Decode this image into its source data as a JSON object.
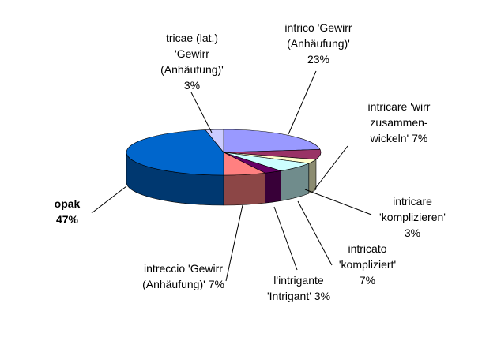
{
  "chart_data": {
    "type": "pie",
    "categories": [
      "intrico 'Gewirr (Anhäufung)'",
      "intricare 'wirr zusammen-wickeln'",
      "intricare 'komplizieren'",
      "intricato 'kompliziert'",
      "l'intrigante 'Intrigant'",
      "intreccio 'Gewirr (Anhäufung)'",
      "opak",
      "tricae (lat.) 'Gewirr (Anhäufung)'"
    ],
    "values": [
      23,
      7,
      3,
      7,
      3,
      7,
      47,
      3
    ],
    "value_labels": [
      "23%",
      "7%",
      "3%",
      "7%",
      "3%",
      "7%",
      "47%",
      "3%"
    ],
    "colors": [
      "#9999ff",
      "#993366",
      "#ffffcc",
      "#ccffff",
      "#660066",
      "#ff8080",
      "#0066cc",
      "#ccccff"
    ]
  }
}
